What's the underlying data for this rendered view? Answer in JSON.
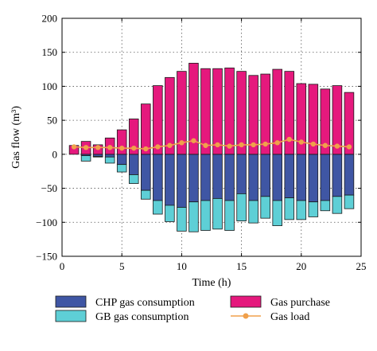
{
  "chart_data": {
    "type": "bar",
    "xlabel": "Time (h)",
    "ylabel": "Gas flow (m³)",
    "xlim": [
      0,
      25
    ],
    "ylim": [
      -150,
      200
    ],
    "x_ticks": [
      0,
      5,
      10,
      15,
      20,
      25
    ],
    "y_ticks": [
      -150,
      -100,
      -50,
      0,
      50,
      100,
      150,
      200
    ],
    "grid": true,
    "legend_position": "bottom",
    "x": [
      1,
      2,
      3,
      4,
      5,
      6,
      7,
      8,
      9,
      10,
      11,
      12,
      13,
      14,
      15,
      16,
      17,
      18,
      19,
      20,
      21,
      22,
      23,
      24
    ],
    "series": [
      {
        "name": "CHP gas consumption",
        "color": "#3f56a4",
        "stack": "negative",
        "values": [
          0,
          -2,
          -3,
          -4,
          -15,
          -30,
          -53,
          -68,
          -75,
          -78,
          -70,
          -68,
          -65,
          -68,
          -58,
          -68,
          -62,
          -68,
          -64,
          -68,
          -70,
          -68,
          -62,
          -60
        ]
      },
      {
        "name": "GB gas consumption",
        "color": "#5ecfd6",
        "stack": "negative",
        "values": [
          0,
          -8,
          -1,
          -9,
          -11,
          -13,
          -13,
          -20,
          -24,
          -35,
          -44,
          -44,
          -45,
          -44,
          -40,
          -33,
          -32,
          -37,
          -32,
          -28,
          -22,
          -15,
          -25,
          -20
        ]
      },
      {
        "name": "Gas purchase",
        "color": "#e5197d",
        "stack": "positive",
        "values": [
          13,
          19,
          14,
          24,
          36,
          52,
          74,
          101,
          113,
          122,
          134,
          126,
          126,
          127,
          122,
          116,
          118,
          125,
          122,
          104,
          103,
          96,
          101,
          91
        ]
      },
      {
        "name": "Gas load",
        "color": "#f0a04b",
        "type": "line",
        "values": [
          11,
          10,
          10,
          10,
          9,
          9,
          8,
          11,
          13,
          17,
          20,
          13,
          14,
          12,
          14,
          14,
          15,
          17,
          22,
          18,
          15,
          13,
          12,
          11
        ]
      }
    ]
  }
}
